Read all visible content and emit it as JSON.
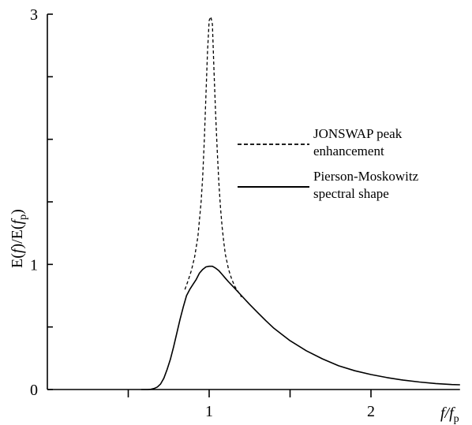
{
  "chart_data": {
    "type": "line",
    "xlabel_parts": {
      "main": "f/f",
      "sub": "p"
    },
    "ylabel_parts": {
      "pre": "E(",
      "f1": "f",
      "mid": ")/E(",
      "f2": "f",
      "sub": "p",
      "post": ")"
    },
    "xlim": [
      0,
      2.55
    ],
    "ylim": [
      0,
      3
    ],
    "x_ticks": [
      {
        "value": 0.5,
        "label": ""
      },
      {
        "value": 1,
        "label": "1"
      },
      {
        "value": 1.5,
        "label": ""
      },
      {
        "value": 2,
        "label": "2"
      }
    ],
    "y_ticks": [
      {
        "value": 0,
        "label": "0"
      },
      {
        "value": 0.5,
        "label": ""
      },
      {
        "value": 1,
        "label": "1"
      },
      {
        "value": 1.5,
        "label": ""
      },
      {
        "value": 2,
        "label": ""
      },
      {
        "value": 2.5,
        "label": ""
      },
      {
        "value": 3,
        "label": "3"
      }
    ],
    "series": [
      {
        "name": "JONSWAP peak enhancement",
        "style": "dashed",
        "x": [
          0.85,
          0.87,
          0.89,
          0.91,
          0.93,
          0.95,
          0.96,
          0.97,
          0.98,
          0.99,
          1.0,
          1.01,
          1.02,
          1.03,
          1.04,
          1.05,
          1.06,
          1.07,
          1.08,
          1.09,
          1.1,
          1.12,
          1.14,
          1.16,
          1.18,
          1.2
        ],
        "y": [
          0.8,
          0.87,
          0.95,
          1.06,
          1.22,
          1.5,
          1.7,
          2.0,
          2.35,
          2.7,
          2.95,
          2.98,
          2.92,
          2.55,
          2.2,
          1.9,
          1.65,
          1.45,
          1.3,
          1.18,
          1.08,
          0.96,
          0.88,
          0.82,
          0.78,
          0.74
        ]
      },
      {
        "name": "Pierson-Moskowitz spectral shape",
        "style": "solid",
        "x": [
          0.58,
          0.6,
          0.62,
          0.64,
          0.66,
          0.68,
          0.7,
          0.72,
          0.74,
          0.76,
          0.78,
          0.8,
          0.82,
          0.84,
          0.86,
          0.88,
          0.9,
          0.92,
          0.94,
          0.96,
          0.98,
          1.0,
          1.02,
          1.04,
          1.06,
          1.08,
          1.1,
          1.12,
          1.15,
          1.2,
          1.25,
          1.3,
          1.35,
          1.4,
          1.45,
          1.5,
          1.6,
          1.7,
          1.8,
          1.9,
          2.0,
          2.1,
          2.2,
          2.3,
          2.4,
          2.5,
          2.55
        ],
        "y": [
          0.0,
          0.0,
          0.0,
          0.002,
          0.008,
          0.02,
          0.045,
          0.09,
          0.16,
          0.24,
          0.34,
          0.45,
          0.56,
          0.66,
          0.75,
          0.8,
          0.84,
          0.88,
          0.93,
          0.96,
          0.98,
          0.985,
          0.985,
          0.97,
          0.95,
          0.92,
          0.89,
          0.86,
          0.82,
          0.75,
          0.68,
          0.615,
          0.55,
          0.49,
          0.44,
          0.39,
          0.31,
          0.245,
          0.19,
          0.15,
          0.12,
          0.095,
          0.075,
          0.06,
          0.048,
          0.04,
          0.038
        ]
      }
    ],
    "legend": [
      {
        "lines": [
          "JONSWAP peak",
          "enhancement"
        ],
        "style": "dashed"
      },
      {
        "lines": [
          "Pierson-Moskowitz",
          "spectral shape"
        ],
        "style": "solid"
      }
    ],
    "grid": false
  }
}
